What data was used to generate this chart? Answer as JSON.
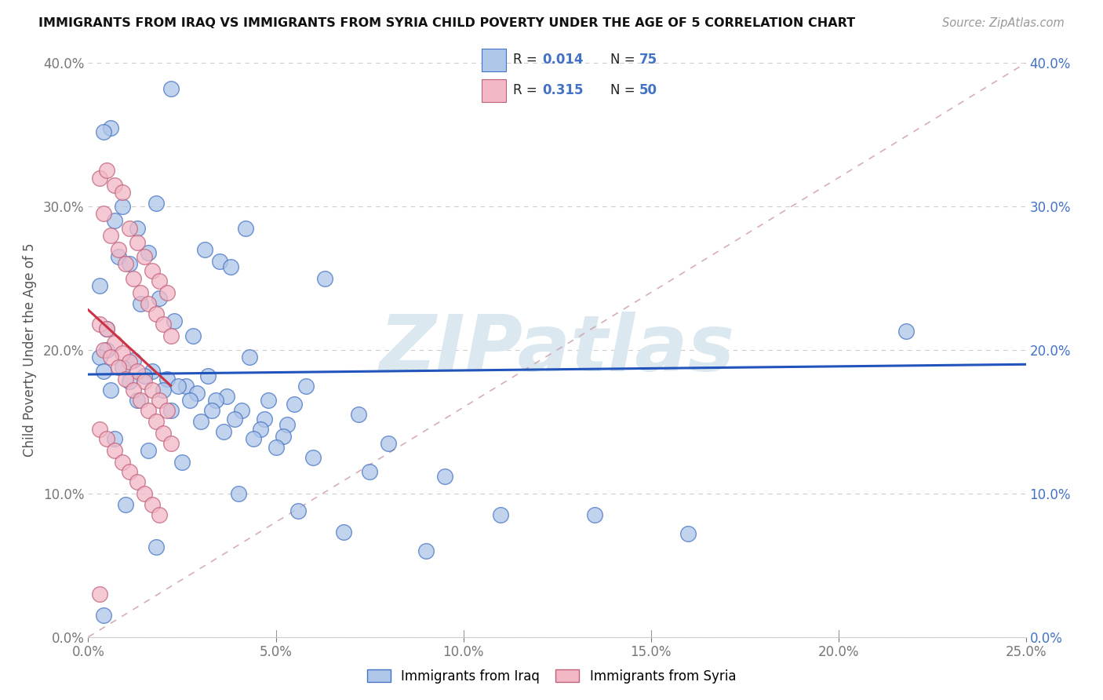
{
  "title": "IMMIGRANTS FROM IRAQ VS IMMIGRANTS FROM SYRIA CHILD POVERTY UNDER THE AGE OF 5 CORRELATION CHART",
  "source": "Source: ZipAtlas.com",
  "ylabel": "Child Poverty Under the Age of 5",
  "legend_iraq": "Immigrants from Iraq",
  "legend_syria": "Immigrants from Syria",
  "R_iraq": "0.014",
  "N_iraq": "75",
  "R_syria": "0.315",
  "N_syria": "50",
  "xlim": [
    0,
    0.25
  ],
  "ylim": [
    0,
    0.4
  ],
  "xticks": [
    0.0,
    0.05,
    0.1,
    0.15,
    0.2,
    0.25
  ],
  "yticks": [
    0.0,
    0.1,
    0.2,
    0.3,
    0.4
  ],
  "color_iraq_fill": "#aec6e8",
  "color_iraq_edge": "#4472c4",
  "color_syria_fill": "#f2b8c6",
  "color_syria_edge": "#c0607a",
  "color_iraq_line": "#2255bb",
  "color_syria_line": "#cc3344",
  "color_diag": "#d0a0a8",
  "watermark": "ZIPatlas",
  "watermark_color": "#dce8f0",
  "iraq_x": [
    0.022,
    0.006,
    0.004,
    0.009,
    0.013,
    0.016,
    0.008,
    0.018,
    0.011,
    0.007,
    0.003,
    0.019,
    0.014,
    0.023,
    0.005,
    0.028,
    0.031,
    0.035,
    0.038,
    0.042,
    0.005,
    0.012,
    0.017,
    0.021,
    0.026,
    0.032,
    0.037,
    0.043,
    0.048,
    0.055,
    0.003,
    0.009,
    0.015,
    0.024,
    0.029,
    0.034,
    0.041,
    0.047,
    0.053,
    0.063,
    0.004,
    0.011,
    0.02,
    0.027,
    0.033,
    0.039,
    0.046,
    0.052,
    0.058,
    0.072,
    0.006,
    0.013,
    0.022,
    0.03,
    0.036,
    0.044,
    0.05,
    0.06,
    0.08,
    0.095,
    0.007,
    0.016,
    0.025,
    0.04,
    0.056,
    0.068,
    0.09,
    0.11,
    0.135,
    0.16,
    0.01,
    0.018,
    0.075,
    0.218,
    0.004
  ],
  "iraq_y": [
    0.382,
    0.355,
    0.352,
    0.3,
    0.285,
    0.268,
    0.265,
    0.302,
    0.26,
    0.29,
    0.245,
    0.236,
    0.232,
    0.22,
    0.215,
    0.21,
    0.27,
    0.262,
    0.258,
    0.285,
    0.2,
    0.193,
    0.185,
    0.18,
    0.175,
    0.182,
    0.168,
    0.195,
    0.165,
    0.162,
    0.195,
    0.188,
    0.182,
    0.175,
    0.17,
    0.165,
    0.158,
    0.152,
    0.148,
    0.25,
    0.185,
    0.178,
    0.172,
    0.165,
    0.158,
    0.152,
    0.145,
    0.14,
    0.175,
    0.155,
    0.172,
    0.165,
    0.158,
    0.15,
    0.143,
    0.138,
    0.132,
    0.125,
    0.135,
    0.112,
    0.138,
    0.13,
    0.122,
    0.1,
    0.088,
    0.073,
    0.06,
    0.085,
    0.085,
    0.072,
    0.092,
    0.063,
    0.115,
    0.213,
    0.015
  ],
  "syria_x": [
    0.003,
    0.005,
    0.007,
    0.009,
    0.011,
    0.013,
    0.015,
    0.017,
    0.019,
    0.021,
    0.004,
    0.006,
    0.008,
    0.01,
    0.012,
    0.014,
    0.016,
    0.018,
    0.02,
    0.022,
    0.003,
    0.005,
    0.007,
    0.009,
    0.011,
    0.013,
    0.015,
    0.017,
    0.019,
    0.021,
    0.004,
    0.006,
    0.008,
    0.01,
    0.012,
    0.014,
    0.016,
    0.018,
    0.02,
    0.022,
    0.003,
    0.005,
    0.007,
    0.009,
    0.011,
    0.013,
    0.015,
    0.017,
    0.019,
    0.003
  ],
  "syria_y": [
    0.32,
    0.325,
    0.315,
    0.31,
    0.285,
    0.275,
    0.265,
    0.255,
    0.248,
    0.24,
    0.295,
    0.28,
    0.27,
    0.26,
    0.25,
    0.24,
    0.232,
    0.225,
    0.218,
    0.21,
    0.218,
    0.215,
    0.205,
    0.198,
    0.192,
    0.185,
    0.178,
    0.172,
    0.165,
    0.158,
    0.2,
    0.195,
    0.188,
    0.18,
    0.172,
    0.165,
    0.158,
    0.15,
    0.142,
    0.135,
    0.145,
    0.138,
    0.13,
    0.122,
    0.115,
    0.108,
    0.1,
    0.092,
    0.085,
    0.03
  ]
}
